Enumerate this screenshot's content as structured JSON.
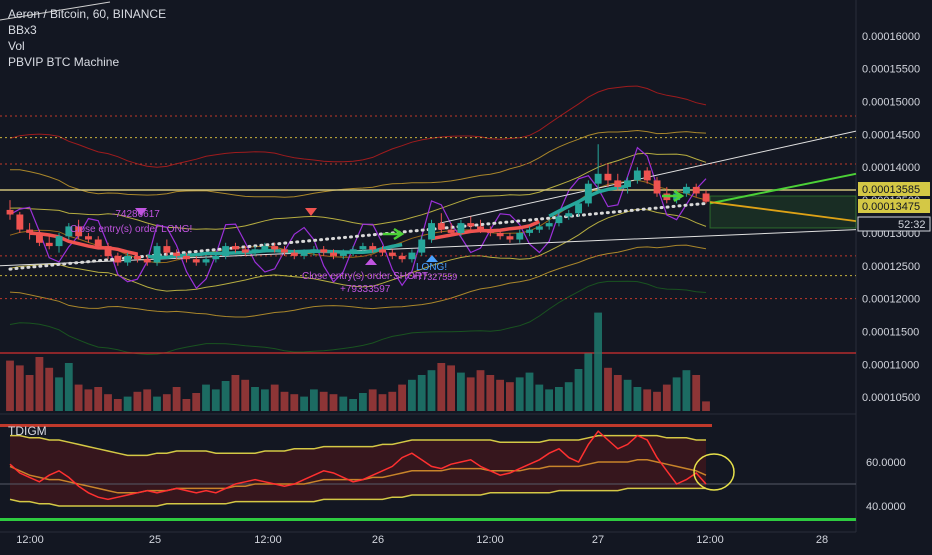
{
  "legend": {
    "title": "Aeron / Bitcoin, 60, BINANCE",
    "indicators": [
      "BBx3",
      "Vol",
      "PBVIP BTC Machine"
    ]
  },
  "oscillator": {
    "name": "TDIGM"
  },
  "annotations": {
    "short_value": "-74286617",
    "close_long": "Close entry(s) order LONG!",
    "close_short": "Close entry(s) order SHORT",
    "long_value": "+79333597",
    "long_label": "LONG!",
    "long_value2": "+77327559"
  },
  "price_tags": [
    "0.00013585",
    "0.00013475",
    "52:32"
  ],
  "colors": {
    "background": "#131722",
    "up_candle": "#26a69a",
    "down_candle": "#ef5350",
    "bb_outer": "#d32f2f",
    "bb_mid": "#c8b43c",
    "trend_green": "#4cd137",
    "trend_orange": "#f39c12",
    "dotted_white": "#d9d9d9",
    "purple": "#9b30d9",
    "tdi_red": "#ff3030",
    "tdi_yellow": "#d4c845",
    "tdi_green": "#2ecc40"
  },
  "chart_data": {
    "type": "candlestick",
    "symbol": "Aeron / Bitcoin",
    "interval": "60",
    "exchange": "BINANCE",
    "price_axis": {
      "ticks": [
        "0.00016000",
        "0.00015500",
        "0.00015000",
        "0.00014500",
        "0.00014000",
        "0.00013500",
        "0.00013000",
        "0.00012500",
        "0.00012000",
        "0.00011500",
        "0.00011000",
        "0.00010500"
      ],
      "ylim": [
        0.000105,
        0.000162
      ]
    },
    "time_axis": {
      "ticks": [
        "12:00",
        "25",
        "12:00",
        "26",
        "12:00",
        "27",
        "12:00",
        "28"
      ]
    },
    "oscillator_axis": {
      "ticks": [
        "60.0000",
        "40.0000"
      ],
      "ylim": [
        30,
        80
      ]
    },
    "candles": [
      [
        13350,
        13500,
        13200,
        13280
      ],
      [
        13280,
        13320,
        13000,
        13050
      ],
      [
        13050,
        13150,
        12900,
        13000
      ],
      [
        13000,
        13050,
        12800,
        12850
      ],
      [
        12850,
        12950,
        12750,
        12800
      ],
      [
        12800,
        13000,
        12700,
        12950
      ],
      [
        12950,
        13150,
        12900,
        13100
      ],
      [
        13100,
        13200,
        12900,
        12950
      ],
      [
        12950,
        13000,
        12850,
        12900
      ],
      [
        12900,
        12950,
        12750,
        12800
      ],
      [
        12800,
        12850,
        12600,
        12650
      ],
      [
        12650,
        12700,
        12500,
        12550
      ],
      [
        12550,
        12700,
        12500,
        12650
      ],
      [
        12650,
        12700,
        12550,
        12600
      ],
      [
        12600,
        12650,
        12500,
        12550
      ],
      [
        12550,
        12850,
        12500,
        12800
      ],
      [
        12800,
        12900,
        12650,
        12700
      ],
      [
        12700,
        12750,
        12600,
        12650
      ],
      [
        12650,
        12700,
        12550,
        12600
      ],
      [
        12600,
        12650,
        12500,
        12550
      ],
      [
        12550,
        12650,
        12500,
        12600
      ],
      [
        12600,
        12700,
        12550,
        12650
      ],
      [
        12650,
        12850,
        12600,
        12800
      ],
      [
        12800,
        12850,
        12700,
        12750
      ],
      [
        12750,
        12800,
        12650,
        12700
      ],
      [
        12700,
        12800,
        12650,
        12750
      ],
      [
        12750,
        12850,
        12700,
        12800
      ],
      [
        12800,
        12850,
        12700,
        12750
      ],
      [
        12750,
        12800,
        12650,
        12700
      ],
      [
        12700,
        12750,
        12600,
        12650
      ],
      [
        12650,
        12750,
        12600,
        12700
      ],
      [
        12700,
        12800,
        12650,
        12750
      ],
      [
        12750,
        12800,
        12650,
        12700
      ],
      [
        12700,
        12750,
        12600,
        12650
      ],
      [
        12650,
        12750,
        12600,
        12700
      ],
      [
        12700,
        12800,
        12650,
        12750
      ],
      [
        12750,
        12850,
        12700,
        12800
      ],
      [
        12800,
        12850,
        12700,
        12750
      ],
      [
        12750,
        12800,
        12650,
        12700
      ],
      [
        12700,
        12750,
        12600,
        12650
      ],
      [
        12650,
        12700,
        12550,
        12600
      ],
      [
        12600,
        12750,
        12550,
        12700
      ],
      [
        12700,
        12950,
        12650,
        12900
      ],
      [
        12900,
        13200,
        12850,
        13150
      ],
      [
        13150,
        13300,
        13000,
        13050
      ],
      [
        13050,
        13150,
        12950,
        13000
      ],
      [
        13000,
        13200,
        12950,
        13150
      ],
      [
        13150,
        13250,
        13050,
        13100
      ],
      [
        13100,
        13200,
        13000,
        13050
      ],
      [
        13050,
        13100,
        12950,
        13000
      ],
      [
        13000,
        13050,
        12900,
        12950
      ],
      [
        12950,
        13000,
        12850,
        12900
      ],
      [
        12900,
        13050,
        12850,
        13000
      ],
      [
        13000,
        13100,
        12950,
        13050
      ],
      [
        13050,
        13150,
        13000,
        13100
      ],
      [
        13100,
        13200,
        13050,
        13150
      ],
      [
        13150,
        13300,
        13100,
        13250
      ],
      [
        13250,
        13350,
        13200,
        13300
      ],
      [
        13300,
        13500,
        13250,
        13450
      ],
      [
        13450,
        13800,
        13400,
        13750
      ],
      [
        13750,
        14350,
        13600,
        13900
      ],
      [
        13900,
        14050,
        13700,
        13800
      ],
      [
        13800,
        13900,
        13650,
        13700
      ],
      [
        13700,
        13850,
        13600,
        13800
      ],
      [
        13800,
        14000,
        13750,
        13950
      ],
      [
        13950,
        14000,
        13750,
        13800
      ],
      [
        13800,
        13850,
        13550,
        13600
      ],
      [
        13600,
        13700,
        13450,
        13500
      ],
      [
        13500,
        13650,
        13450,
        13600
      ],
      [
        13600,
        13750,
        13550,
        13700
      ],
      [
        13700,
        13750,
        13550,
        13600
      ],
      [
        13600,
        13650,
        13450,
        13475
      ]
    ],
    "volume": [
      42,
      38,
      30,
      45,
      36,
      28,
      40,
      22,
      18,
      20,
      14,
      10,
      12,
      16,
      18,
      12,
      14,
      20,
      10,
      15,
      22,
      18,
      25,
      30,
      26,
      20,
      18,
      22,
      16,
      14,
      12,
      18,
      16,
      14,
      12,
      10,
      15,
      18,
      14,
      16,
      22,
      26,
      30,
      34,
      40,
      38,
      32,
      28,
      34,
      30,
      26,
      24,
      28,
      32,
      22,
      18,
      20,
      24,
      35,
      48,
      82,
      36,
      30,
      26,
      20,
      18,
      16,
      22,
      28,
      34,
      30,
      8
    ],
    "tdi": {
      "price_line": [
        59,
        55,
        53,
        51,
        54,
        56,
        53,
        49,
        46,
        44,
        43,
        44,
        45,
        46,
        47,
        46,
        47,
        48,
        47,
        46,
        47,
        46,
        48,
        50,
        51,
        52,
        51,
        50,
        49,
        50,
        52,
        54,
        56,
        55,
        53,
        51,
        52,
        54,
        56,
        58,
        62,
        64,
        61,
        58,
        57,
        59,
        60,
        61,
        58,
        56,
        54,
        55,
        57,
        59,
        61,
        64,
        66,
        62,
        60,
        68,
        74,
        70,
        66,
        68,
        72,
        70,
        62,
        56,
        50,
        52,
        55,
        50
      ],
      "signal_line": [
        58,
        56,
        54,
        53,
        52,
        52,
        51,
        50,
        49,
        48,
        47,
        46,
        46,
        46,
        47,
        47,
        47,
        48,
        48,
        48,
        48,
        48,
        48,
        49,
        49,
        50,
        50,
        50,
        50,
        50,
        50,
        51,
        52,
        52,
        52,
        52,
        52,
        53,
        53,
        54,
        55,
        56,
        56,
        56,
        56,
        57,
        57,
        57,
        57,
        56,
        56,
        56,
        56,
        57,
        57,
        58,
        58,
        58,
        58,
        59,
        60,
        60,
        60,
        60,
        61,
        61,
        60,
        59,
        58,
        57,
        56,
        54
      ],
      "upper_band": [
        72,
        72,
        71,
        71,
        70,
        70,
        69,
        68,
        67,
        66,
        65,
        64,
        63,
        63,
        63,
        64,
        64,
        65,
        65,
        65,
        65,
        64,
        64,
        64,
        64,
        64,
        65,
        65,
        65,
        66,
        66,
        66,
        67,
        67,
        67,
        67,
        67,
        67,
        68,
        68,
        69,
        70,
        70,
        70,
        70,
        70,
        70,
        70,
        70,
        70,
        69,
        69,
        69,
        69,
        69,
        70,
        70,
        70,
        70,
        71,
        72,
        72,
        72,
        72,
        72,
        72,
        72,
        71,
        71,
        71,
        70,
        70
      ],
      "lower_band": [
        43,
        42,
        42,
        41,
        41,
        40,
        40,
        40,
        40,
        40,
        40,
        40,
        40,
        40,
        40,
        40,
        41,
        41,
        41,
        41,
        41,
        41,
        41,
        42,
        42,
        42,
        42,
        42,
        42,
        42,
        42,
        42,
        43,
        43,
        43,
        43,
        43,
        43,
        43,
        44,
        44,
        45,
        45,
        45,
        45,
        45,
        45,
        45,
        45,
        46,
        46,
        46,
        46,
        46,
        46,
        46,
        47,
        47,
        47,
        47,
        47,
        47,
        47,
        48,
        48,
        48,
        48,
        48,
        48,
        48,
        48,
        48
      ]
    }
  }
}
